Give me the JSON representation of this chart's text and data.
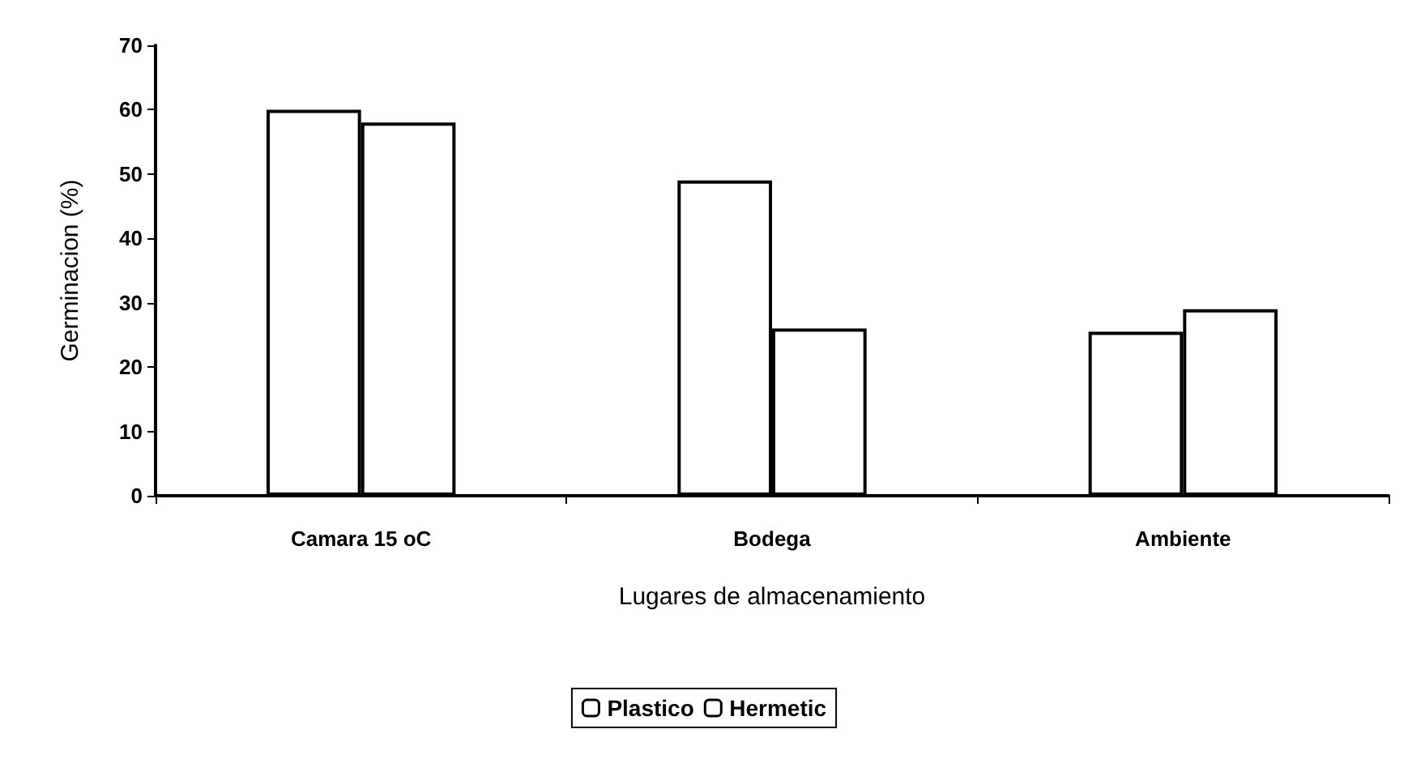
{
  "chart_data": {
    "type": "bar",
    "xlabel": "Lugares de almacenamiento",
    "ylabel": "Germinacion (%)",
    "categories": [
      "Camara 15 oC",
      "Bodega",
      "Ambiente"
    ],
    "series": [
      {
        "name": "Plastico",
        "color": "#ffffff",
        "values": [
          60,
          49,
          25.5
        ]
      },
      {
        "name": "Hermetic",
        "color": "#ffffff",
        "values": [
          58,
          26,
          29
        ]
      }
    ],
    "ylim": [
      0,
      70
    ],
    "yticks": [
      0,
      10,
      20,
      30,
      40,
      50,
      60,
      70
    ],
    "grid": false,
    "legend": "bottom"
  }
}
